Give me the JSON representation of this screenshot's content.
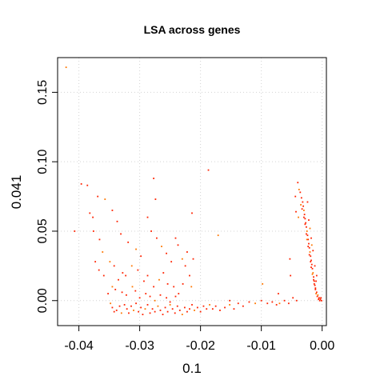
{
  "chart_data": {
    "type": "scatter",
    "title": "LSA across genes",
    "xlabel": "0.1",
    "ylabel": "0.041",
    "xlim": [
      -0.0435,
      0.0007
    ],
    "ylim": [
      -0.018,
      0.175
    ],
    "x_ticks": [
      -0.04,
      -0.03,
      -0.02,
      -0.01,
      0.0
    ],
    "x_tick_labels": [
      "-0.04",
      "-0.03",
      "-0.02",
      "-0.01",
      "0.00"
    ],
    "y_ticks": [
      0.0,
      0.05,
      0.1,
      0.15
    ],
    "y_tick_labels": [
      "0.00",
      "0.05",
      "0.10",
      "0.15"
    ],
    "grid": true,
    "point_colors": [
      "#ff2200",
      "#ff7700"
    ],
    "points": [
      [
        -0.0421,
        0.168
      ],
      [
        -0.0396,
        0.084
      ],
      [
        -0.0386,
        0.083
      ],
      [
        -0.0407,
        0.05
      ],
      [
        -0.0369,
        0.075
      ],
      [
        -0.0357,
        0.073
      ],
      [
        -0.0277,
        0.088
      ],
      [
        -0.0274,
        0.073
      ],
      [
        -0.0187,
        0.094
      ],
      [
        -0.0214,
        0.063
      ],
      [
        -0.0171,
        0.047
      ],
      [
        -0.0382,
        0.063
      ],
      [
        -0.0377,
        0.06
      ],
      [
        -0.0376,
        0.05
      ],
      [
        -0.0366,
        0.044
      ],
      [
        -0.0361,
        0.035
      ],
      [
        -0.0345,
        0.065
      ],
      [
        -0.0337,
        0.057
      ],
      [
        -0.0331,
        0.048
      ],
      [
        -0.0319,
        0.042
      ],
      [
        -0.0306,
        0.037
      ],
      [
        -0.0298,
        0.032
      ],
      [
        -0.0287,
        0.06
      ],
      [
        -0.0281,
        0.05
      ],
      [
        -0.0272,
        0.045
      ],
      [
        -0.0264,
        0.039
      ],
      [
        -0.0256,
        0.034
      ],
      [
        -0.0248,
        0.028
      ],
      [
        -0.0241,
        0.045
      ],
      [
        -0.0237,
        0.04
      ],
      [
        -0.023,
        0.03
      ],
      [
        -0.0225,
        0.025
      ],
      [
        -0.0222,
        0.035
      ],
      [
        -0.0212,
        0.03
      ],
      [
        -0.0218,
        0.018
      ],
      [
        -0.0215,
        0.01
      ],
      [
        -0.0229,
        0.012
      ],
      [
        -0.0373,
        0.028
      ],
      [
        -0.0367,
        0.022
      ],
      [
        -0.0359,
        0.018
      ],
      [
        -0.0349,
        0.028
      ],
      [
        -0.0342,
        0.025
      ],
      [
        -0.0335,
        0.015
      ],
      [
        -0.0328,
        0.02
      ],
      [
        -0.0323,
        0.018
      ],
      [
        -0.0313,
        0.025
      ],
      [
        -0.0303,
        0.022
      ],
      [
        -0.0293,
        0.014
      ],
      [
        -0.0287,
        0.018
      ],
      [
        -0.0277,
        0.01
      ],
      [
        -0.0268,
        0.015
      ],
      [
        -0.0261,
        0.02
      ],
      [
        -0.0254,
        0.012
      ],
      [
        -0.0244,
        0.01
      ],
      [
        -0.0236,
        0.005
      ],
      [
        -0.0345,
        0.01
      ],
      [
        -0.0352,
        0.005
      ],
      [
        -0.034,
        0.008
      ],
      [
        -0.0329,
        0.006
      ],
      [
        -0.0322,
        0.004
      ],
      [
        -0.0312,
        0.01
      ],
      [
        -0.0307,
        0.007
      ],
      [
        -0.03,
        0.002
      ],
      [
        -0.029,
        0.005
      ],
      [
        -0.0283,
        0.003
      ],
      [
        -0.0275,
        0.0
      ],
      [
        -0.0266,
        0.004
      ],
      [
        -0.0256,
        0.002
      ],
      [
        -0.025,
        -0.001
      ],
      [
        -0.0241,
        0.003
      ],
      [
        -0.0348,
        -0.002
      ],
      [
        -0.0345,
        -0.005
      ],
      [
        -0.0342,
        -0.008
      ],
      [
        -0.0338,
        -0.007
      ],
      [
        -0.0333,
        -0.004
      ],
      [
        -0.033,
        -0.009
      ],
      [
        -0.0325,
        -0.003
      ],
      [
        -0.0321,
        -0.006
      ],
      [
        -0.0318,
        -0.009
      ],
      [
        -0.0314,
        -0.004
      ],
      [
        -0.031,
        -0.007
      ],
      [
        -0.0306,
        -0.002
      ],
      [
        -0.0302,
        -0.008
      ],
      [
        -0.0298,
        -0.005
      ],
      [
        -0.0295,
        -0.01
      ],
      [
        -0.0291,
        -0.006
      ],
      [
        -0.0287,
        -0.003
      ],
      [
        -0.0283,
        -0.009
      ],
      [
        -0.0279,
        -0.006
      ],
      [
        -0.0275,
        -0.008
      ],
      [
        -0.027,
        -0.004
      ],
      [
        -0.0266,
        -0.007
      ],
      [
        -0.0262,
        -0.01
      ],
      [
        -0.0258,
        -0.005
      ],
      [
        -0.0254,
        -0.008
      ],
      [
        -0.025,
        -0.003
      ],
      [
        -0.0246,
        -0.006
      ],
      [
        -0.0242,
        -0.009
      ],
      [
        -0.0238,
        -0.004
      ],
      [
        -0.0234,
        -0.007
      ],
      [
        -0.023,
        -0.01
      ],
      [
        -0.0226,
        -0.005
      ],
      [
        -0.0222,
        -0.008
      ],
      [
        -0.0218,
        -0.006
      ],
      [
        -0.0214,
        -0.003
      ],
      [
        -0.021,
        -0.007
      ],
      [
        -0.0205,
        -0.005
      ],
      [
        -0.02,
        -0.008
      ],
      [
        -0.0195,
        -0.004
      ],
      [
        -0.019,
        -0.006
      ],
      [
        -0.0185,
        -0.003
      ],
      [
        -0.018,
        -0.006
      ],
      [
        -0.0175,
        -0.004
      ],
      [
        -0.0168,
        -0.007
      ],
      [
        -0.016,
        -0.005
      ],
      [
        -0.0152,
        -0.003
      ],
      [
        -0.0145,
        -0.006
      ],
      [
        -0.0138,
        -0.002
      ],
      [
        -0.013,
        -0.004
      ],
      [
        -0.012,
        -0.001
      ],
      [
        -0.011,
        -0.002
      ],
      [
        -0.01,
        0.0
      ],
      [
        -0.009,
        -0.002
      ],
      [
        -0.0082,
        -0.001
      ],
      [
        -0.0075,
        -0.003
      ],
      [
        -0.007,
        -0.002
      ],
      [
        -0.0062,
        0.0
      ],
      [
        -0.0055,
        -0.002
      ],
      [
        -0.0048,
        0.002
      ],
      [
        -0.0042,
        0.0
      ],
      [
        -0.0098,
        0.012
      ],
      [
        -0.0072,
        0.005
      ],
      [
        -0.0052,
        0.018
      ],
      [
        -0.0152,
        0.0
      ],
      [
        -0.004,
        0.085
      ],
      [
        -0.0038,
        0.08
      ],
      [
        -0.0036,
        0.078
      ],
      [
        -0.0034,
        0.074
      ],
      [
        -0.0032,
        0.071
      ],
      [
        -0.0031,
        0.068
      ],
      [
        -0.003,
        0.065
      ],
      [
        -0.0029,
        0.062
      ],
      [
        -0.0028,
        0.059
      ],
      [
        -0.0027,
        0.056
      ],
      [
        -0.0026,
        0.053
      ],
      [
        -0.0025,
        0.05
      ],
      [
        -0.0024,
        0.047
      ],
      [
        -0.0023,
        0.044
      ],
      [
        -0.0022,
        0.041
      ],
      [
        -0.0021,
        0.038
      ],
      [
        -0.002,
        0.035
      ],
      [
        -0.0019,
        0.032
      ],
      [
        -0.0018,
        0.029
      ],
      [
        -0.0017,
        0.026
      ],
      [
        -0.0016,
        0.023
      ],
      [
        -0.0015,
        0.02
      ],
      [
        -0.0014,
        0.017
      ],
      [
        -0.0013,
        0.014
      ],
      [
        -0.0012,
        0.011
      ],
      [
        -0.0011,
        0.008
      ],
      [
        -0.001,
        0.005
      ],
      [
        -0.0008,
        0.003
      ],
      [
        -0.0006,
        0.001
      ],
      [
        -0.0004,
        0.0
      ],
      [
        -0.0002,
        0.002
      ],
      [
        -0.0035,
        0.069
      ],
      [
        -0.0033,
        0.066
      ],
      [
        -0.003,
        0.06
      ],
      [
        -0.0028,
        0.055
      ],
      [
        -0.0026,
        0.048
      ],
      [
        -0.0025,
        0.044
      ],
      [
        -0.0023,
        0.039
      ],
      [
        -0.0021,
        0.033
      ],
      [
        -0.0019,
        0.028
      ],
      [
        -0.0018,
        0.024
      ],
      [
        -0.0016,
        0.019
      ],
      [
        -0.0014,
        0.015
      ],
      [
        -0.0013,
        0.012
      ],
      [
        -0.0011,
        0.009
      ],
      [
        -0.0009,
        0.006
      ],
      [
        -0.0007,
        0.004
      ],
      [
        -0.0005,
        0.002
      ],
      [
        -0.0003,
        0.001
      ],
      [
        -0.0001,
        0.0
      ],
      [
        -0.0022,
        0.058
      ],
      [
        -0.002,
        0.052
      ],
      [
        -0.0018,
        0.045
      ],
      [
        -0.0015,
        0.036
      ],
      [
        -0.0012,
        0.025
      ],
      [
        -0.0009,
        0.018
      ],
      [
        -0.0039,
        0.06
      ],
      [
        -0.0043,
        0.064
      ],
      [
        -0.0044,
        0.075
      ],
      [
        -0.0053,
        0.03
      ],
      [
        -0.0024,
        0.071
      ],
      [
        -0.0017,
        0.04
      ],
      [
        -0.001,
        0.014
      ]
    ]
  }
}
